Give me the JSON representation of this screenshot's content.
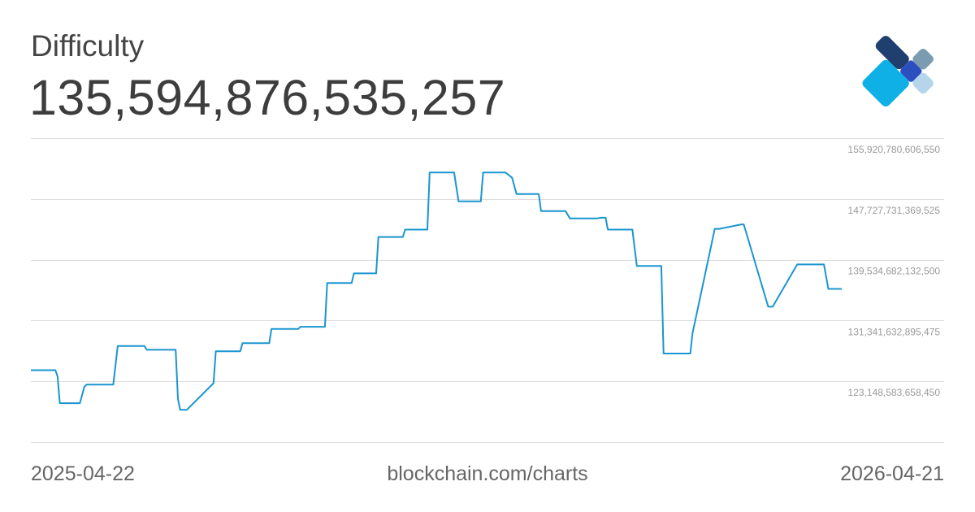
{
  "header": {
    "title": "Difficulty",
    "value": "135,594,876,535,257"
  },
  "footer": {
    "x_start": "2025-04-22",
    "source": "blockchain.com/charts",
    "x_end": "2026-04-21"
  },
  "logo": {
    "icon": "blockchain-logo-icon",
    "colors": [
      "#7b9bb0",
      "#1f3f6e",
      "#2b4fbf",
      "#0fb0e6",
      "#b5d5ea"
    ]
  },
  "chart_data": {
    "type": "line",
    "title": "Difficulty",
    "xlabel": "",
    "ylabel": "",
    "x_range": [
      "2025-04-22",
      "2026-04-21"
    ],
    "ylim": [
      114955534421425,
      155920780606550
    ],
    "y_ticks": [
      {
        "value": 155920780606550,
        "label": "155,920,780,606,550"
      },
      {
        "value": 147727731369525,
        "label": "147,727,731,369,525"
      },
      {
        "value": 139534682132500,
        "label": "139,534,682,132,500"
      },
      {
        "value": 131341632895475,
        "label": "131,341,632,895,475"
      },
      {
        "value": 123148583658450,
        "label": "123,148,583,658,450"
      }
    ],
    "grid": true,
    "line_color": "#1a95d0",
    "series": [
      {
        "x": [
          "2025-04-22",
          "2025-05-03",
          "2025-05-04",
          "2025-05-05",
          "2025-05-14",
          "2025-05-16",
          "2025-05-17",
          "2025-05-29",
          "2025-05-31",
          "2025-06-12",
          "2025-06-13",
          "2025-06-26",
          "2025-06-27",
          "2025-06-28",
          "2025-07-01",
          "2025-07-13",
          "2025-07-14",
          "2025-07-25",
          "2025-07-26",
          "2025-08-07",
          "2025-08-08",
          "2025-08-20",
          "2025-08-21",
          "2025-09-01",
          "2025-09-02",
          "2025-09-13",
          "2025-09-14",
          "2025-09-24",
          "2025-09-25",
          "2025-10-06",
          "2025-10-07",
          "2025-10-17",
          "2025-10-18",
          "2025-10-29",
          "2025-10-31",
          "2025-11-10",
          "2025-11-11",
          "2025-11-21",
          "2025-11-24",
          "2025-11-26",
          "2025-12-06",
          "2025-12-07",
          "2025-12-18",
          "2025-12-20",
          "2026-01-01",
          "2026-01-03",
          "2026-01-05",
          "2026-01-06",
          "2026-01-17",
          "2026-01-19",
          "2026-01-30",
          "2026-01-31",
          "2026-02-12",
          "2026-02-13",
          "2026-02-23",
          "2026-02-25",
          "2026-03-07",
          "2026-03-08",
          "2026-03-19",
          "2026-03-21",
          "2026-04-01",
          "2026-04-02",
          "2026-04-03",
          "2026-04-13",
          "2026-04-15",
          "2026-04-20",
          "2026-04-21"
        ],
        "values": [
          124650000000000,
          124650000000000,
          123800000000000,
          120200000000000,
          120200000000000,
          122400000000000,
          122700000000000,
          122700000000000,
          127900000000000,
          127900000000000,
          127400000000000,
          127400000000000,
          120800000000000,
          119300000000000,
          119300000000000,
          122900000000000,
          127200000000000,
          127200000000000,
          128300000000000,
          128300000000000,
          130200000000000,
          130200000000000,
          130500000000000,
          130500000000000,
          136400000000000,
          136400000000000,
          137700000000000,
          137700000000000,
          142600000000000,
          142600000000000,
          143600000000000,
          143600000000000,
          151300000000000,
          151300000000000,
          147400000000000,
          147400000000000,
          151300000000000,
          151300000000000,
          150600000000000,
          148400000000000,
          148400000000000,
          146100000000000,
          146100000000000,
          145100000000000,
          145100000000000,
          145200000000000,
          145200000000000,
          143600000000000,
          143600000000000,
          138700000000000,
          138700000000000,
          126900000000000,
          126900000000000,
          129600000000000,
          143700000000000,
          143700000000000,
          144300000000000,
          144300000000000,
          133200000000000,
          133200000000000,
          138900000000000,
          138900000000000,
          138900000000000,
          138900000000000,
          135600000000000,
          135600000000000,
          135600000000000
        ]
      }
    ]
  }
}
